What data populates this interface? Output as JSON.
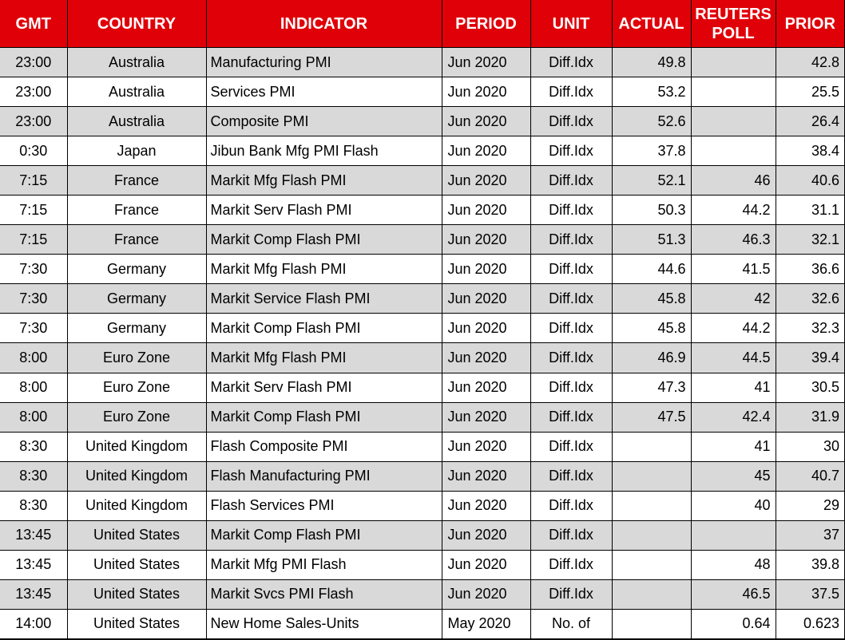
{
  "colors": {
    "header_bg": "#e00008",
    "header_text": "#ffffff",
    "row_alt_bg": "#d9d9d9",
    "row_bg": "#ffffff",
    "border": "#000000",
    "text": "#000000"
  },
  "chart_data": {
    "type": "table",
    "title": "",
    "columns": [
      "GMT",
      "COUNTRY",
      "INDICATOR",
      "PERIOD",
      "UNIT",
      "ACTUAL",
      "REUTERS POLL",
      "PRIOR"
    ],
    "column_keys": [
      "gmt",
      "country",
      "indicator",
      "period",
      "unit",
      "actual",
      "reuters-poll",
      "prior"
    ],
    "rows": [
      [
        "23:00",
        "Australia",
        "Manufacturing PMI",
        "Jun 2020",
        "Diff.Idx",
        "49.8",
        "",
        "42.8"
      ],
      [
        "23:00",
        "Australia",
        "Services PMI",
        "Jun 2020",
        "Diff.Idx",
        "53.2",
        "",
        "25.5"
      ],
      [
        "23:00",
        "Australia",
        "Composite PMI",
        "Jun 2020",
        "Diff.Idx",
        "52.6",
        "",
        "26.4"
      ],
      [
        "0:30",
        "Japan",
        "Jibun Bank Mfg PMI Flash",
        "Jun 2020",
        "Diff.Idx",
        "37.8",
        "",
        "38.4"
      ],
      [
        "7:15",
        "France",
        "Markit Mfg Flash PMI",
        "Jun 2020",
        "Diff.Idx",
        "52.1",
        "46",
        "40.6"
      ],
      [
        "7:15",
        "France",
        "Markit Serv Flash PMI",
        "Jun 2020",
        "Diff.Idx",
        "50.3",
        "44.2",
        "31.1"
      ],
      [
        "7:15",
        "France",
        "Markit Comp Flash PMI",
        "Jun 2020",
        "Diff.Idx",
        "51.3",
        "46.3",
        "32.1"
      ],
      [
        "7:30",
        "Germany",
        "Markit Mfg Flash PMI",
        "Jun 2020",
        "Diff.Idx",
        "44.6",
        "41.5",
        "36.6"
      ],
      [
        "7:30",
        "Germany",
        "Markit Service Flash PMI",
        "Jun 2020",
        "Diff.Idx",
        "45.8",
        "42",
        "32.6"
      ],
      [
        "7:30",
        "Germany",
        "Markit Comp Flash PMI",
        "Jun 2020",
        "Diff.Idx",
        "45.8",
        "44.2",
        "32.3"
      ],
      [
        "8:00",
        "Euro Zone",
        "Markit Mfg Flash PMI",
        "Jun 2020",
        "Diff.Idx",
        "46.9",
        "44.5",
        "39.4"
      ],
      [
        "8:00",
        "Euro Zone",
        "Markit Serv Flash PMI",
        "Jun 2020",
        "Diff.Idx",
        "47.3",
        "41",
        "30.5"
      ],
      [
        "8:00",
        "Euro Zone",
        "Markit Comp Flash PMI",
        "Jun 2020",
        "Diff.Idx",
        "47.5",
        "42.4",
        "31.9"
      ],
      [
        "8:30",
        "United Kingdom",
        "Flash Composite PMI",
        "Jun 2020",
        "Diff.Idx",
        "",
        "41",
        "30"
      ],
      [
        "8:30",
        "United Kingdom",
        "Flash Manufacturing PMI",
        "Jun 2020",
        "Diff.Idx",
        "",
        "45",
        "40.7"
      ],
      [
        "8:30",
        "United Kingdom",
        "Flash Services PMI",
        "Jun 2020",
        "Diff.Idx",
        "",
        "40",
        "29"
      ],
      [
        "13:45",
        "United States",
        "Markit Comp Flash PMI",
        "Jun 2020",
        "Diff.Idx",
        "",
        "",
        "37"
      ],
      [
        "13:45",
        "United States",
        "Markit Mfg PMI Flash",
        "Jun 2020",
        "Diff.Idx",
        "",
        "48",
        "39.8"
      ],
      [
        "13:45",
        "United States",
        "Markit Svcs PMI Flash",
        "Jun 2020",
        "Diff.Idx",
        "",
        "46.5",
        "37.5"
      ],
      [
        "14:00",
        "United States",
        "New Home Sales-Units",
        "May 2020",
        "No. of",
        "",
        "0.64",
        "0.623"
      ]
    ]
  }
}
